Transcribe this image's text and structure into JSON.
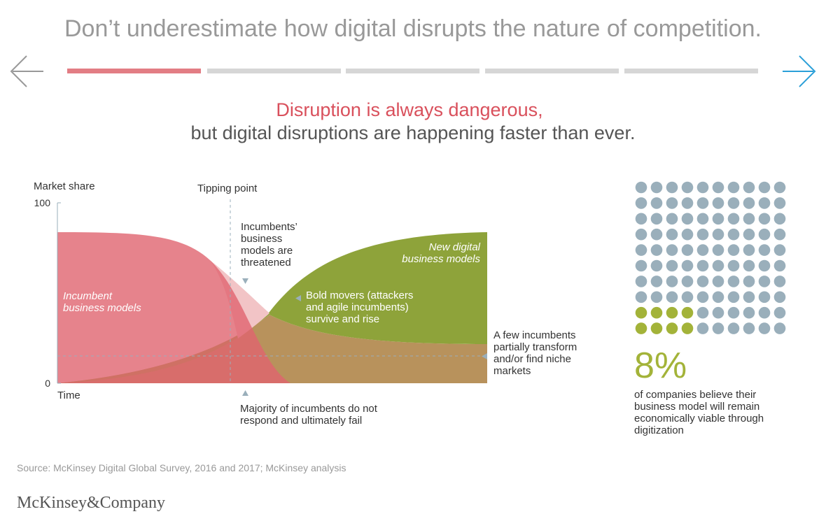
{
  "header": {
    "title": "Don’t underestimate how digital disrupts the nature of competition."
  },
  "headline": {
    "line1": "Disruption is always dangerous,",
    "line2": "but digital disruptions are happening faster than ever."
  },
  "chart": {
    "y_label": "Market share",
    "x_label": "Time",
    "ylim": [
      0,
      100
    ],
    "yticks": [
      0,
      100
    ],
    "tipping_label": "Tipping point",
    "labels": {
      "incumbent": [
        "Incumbent",
        "business models"
      ],
      "digital": [
        "New digital",
        "business models"
      ]
    },
    "annotations": {
      "threatened": [
        "Incumbents’",
        "business",
        "models are",
        "threatened"
      ],
      "bold": [
        "Bold movers (attackers",
        "and agile incumbents)",
        "survive and rise"
      ],
      "few": [
        "A few incumbents",
        "partially transform",
        "and/or find niche",
        "markets"
      ],
      "majority": [
        "Majority of incumbents do not",
        "respond and ultimately fail"
      ]
    }
  },
  "stat": {
    "value": 8,
    "label": "8%",
    "text": [
      "of companies believe their",
      "business model will remain",
      "economically viable through",
      "digitization"
    ]
  },
  "source": "Source: McKinsey Digital Global Survey, 2016 and 2017; McKinsey analysis",
  "brand": "McKinsey&Company"
}
